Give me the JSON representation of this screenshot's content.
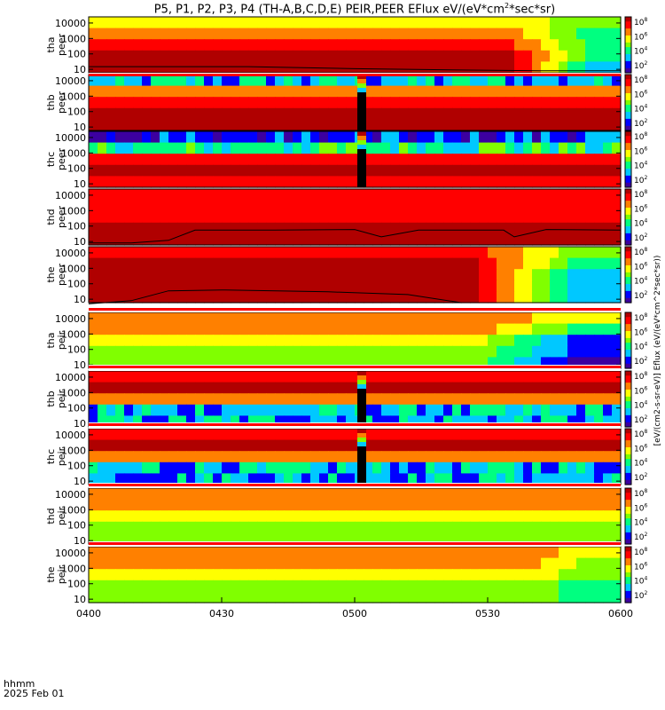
{
  "title": "P5, P1, P2, P3, P4 (TH-A,B,C,D,E) PEIR,PEER EFlux eV/(eV*cm",
  "title_sup": "2",
  "title_tail": "*sec*sr)",
  "time_label": "hhmm",
  "date_label": "2025 Feb 01",
  "chart_data": {
    "type": "heatmap",
    "xlim": [
      "0400",
      "0600"
    ],
    "x_ticks": [
      "0400",
      "0430",
      "0500",
      "0530",
      "0600"
    ],
    "y_scale": "log",
    "y_ticks": [
      "10000",
      "1000",
      "100",
      "10"
    ],
    "colorbar": {
      "scale": "log",
      "ticks": [
        "10^2",
        "10^4",
        "10^6",
        "10^8"
      ],
      "colors": [
        "#3c00a0",
        "#0000ff",
        "#00c8ff",
        "#00ff80",
        "#80ff00",
        "#ffff00",
        "#ff8000",
        "#ff0000",
        "#b00000"
      ],
      "unit_label": "[eV/(cm2-s-sr-eV)] Eflux (eV/(eV*cm^2*sec*sr))"
    },
    "panels": [
      {
        "ylabel": [
          "tha",
          "peer"
        ],
        "levels": [
          5,
          6,
          7,
          8,
          8
        ],
        "fall_start": 0.78,
        "fall_to": [
          4,
          3,
          3,
          3,
          2
        ],
        "noisy": false,
        "gap_at": null,
        "flux_line": [
          [
            0,
            15
          ],
          [
            0.3,
            15
          ],
          [
            0.5,
            11
          ],
          [
            0.7,
            9
          ],
          [
            0.85,
            8
          ],
          [
            1.0,
            8
          ]
        ]
      },
      {
        "ylabel": [
          "thb",
          "peer"
        ],
        "levels": [
          2,
          6,
          7,
          8,
          8
        ],
        "fall_start": null,
        "fall_to": null,
        "noisy": true,
        "gap_at": 0.505,
        "flux_line": null
      },
      {
        "ylabel": [
          "thc",
          "peer"
        ],
        "levels": [
          1,
          3,
          7,
          8,
          7
        ],
        "fall_start": null,
        "fall_to": null,
        "noisy": true,
        "gap_at": 0.505,
        "flux_line": null
      },
      {
        "ylabel": [
          "thd",
          "peer"
        ],
        "levels": [
          7,
          7,
          7,
          8,
          8
        ],
        "fall_start": null,
        "fall_to": null,
        "noisy": false,
        "gap_at": null,
        "flux_line": [
          [
            0,
            8
          ],
          [
            0.08,
            8
          ],
          [
            0.15,
            12
          ],
          [
            0.2,
            55
          ],
          [
            0.35,
            55
          ],
          [
            0.5,
            60
          ],
          [
            0.55,
            20
          ],
          [
            0.62,
            55
          ],
          [
            0.78,
            55
          ],
          [
            0.8,
            20
          ],
          [
            0.86,
            60
          ],
          [
            1.0,
            55
          ]
        ]
      },
      {
        "ylabel": [
          "the",
          "peer"
        ],
        "levels": [
          7,
          8,
          8,
          8,
          8
        ],
        "fall_start": 0.7,
        "fall_to": [
          4,
          3,
          2,
          2,
          2
        ],
        "noisy": false,
        "gap_at": null,
        "flux_line": [
          [
            0,
            5
          ],
          [
            0.08,
            8
          ],
          [
            0.15,
            35
          ],
          [
            0.25,
            40
          ],
          [
            0.45,
            30
          ],
          [
            0.6,
            20
          ],
          [
            0.7,
            6
          ]
        ]
      },
      {
        "ylabel": [
          "tha",
          "peir"
        ],
        "levels": [
          6,
          6,
          5,
          4,
          4
        ],
        "fall_start": 0.72,
        "fall_to": [
          5,
          3,
          1,
          1,
          0
        ],
        "noisy": false,
        "gap_at": null,
        "flux_line": null
      },
      {
        "ylabel": [
          "thb",
          "peir"
        ],
        "levels": [
          7,
          8,
          6,
          2,
          2
        ],
        "fall_start": null,
        "fall_to": null,
        "noisy": true,
        "gap_at": 0.505,
        "flux_line": null
      },
      {
        "ylabel": [
          "thc",
          "peir"
        ],
        "levels": [
          7,
          8,
          6,
          2,
          2
        ],
        "fall_start": null,
        "fall_to": null,
        "noisy": true,
        "gap_at": 0.505,
        "flux_line": null
      },
      {
        "ylabel": [
          "thd",
          "peir"
        ],
        "levels": [
          6,
          6,
          5,
          4,
          4
        ],
        "fall_start": null,
        "fall_to": null,
        "noisy": false,
        "gap_at": null,
        "flux_line": null
      },
      {
        "ylabel": [
          "the",
          "peir"
        ],
        "levels": [
          6,
          6,
          5,
          4,
          4
        ],
        "fall_start": 0.8,
        "fall_to": [
          5,
          4,
          4,
          3,
          3
        ],
        "noisy": false,
        "gap_at": null,
        "flux_line": null
      }
    ]
  }
}
